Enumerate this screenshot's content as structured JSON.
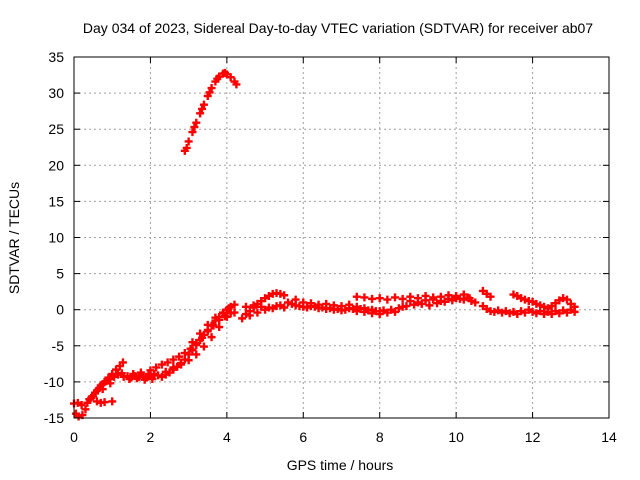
{
  "chart_data": {
    "type": "scatter",
    "title": "Day 034 of 2023, Sidereal Day-to-day VTEC variation (SDTVAR) for receiver ab07",
    "xlabel": "GPS time / hours",
    "ylabel": "SDTVAR / TECUs",
    "xlim": [
      0,
      14
    ],
    "ylim": [
      -15,
      35
    ],
    "xticks": [
      0,
      2,
      4,
      6,
      8,
      10,
      12,
      14
    ],
    "yticks": [
      -15,
      -10,
      -5,
      0,
      5,
      10,
      15,
      20,
      25,
      30,
      35
    ],
    "grid": true,
    "legend": "none",
    "marker": "plus",
    "series": [
      {
        "color": "#ff0000",
        "points": [
          [
            0.0,
            -13.0
          ],
          [
            0.1,
            -12.9
          ],
          [
            0.2,
            -13.2
          ],
          [
            0.05,
            -14.4
          ],
          [
            0.12,
            -14.8
          ],
          [
            0.22,
            -14.6
          ],
          [
            0.3,
            -13.8
          ],
          [
            0.35,
            -12.9
          ],
          [
            0.45,
            -12.2
          ],
          [
            0.55,
            -11.5
          ],
          [
            0.65,
            -10.9
          ],
          [
            0.75,
            -10.3
          ],
          [
            0.85,
            -9.9
          ],
          [
            0.95,
            -9.6
          ],
          [
            1.05,
            -9.3
          ],
          [
            1.15,
            -9.0
          ],
          [
            1.25,
            -8.8
          ],
          [
            0.5,
            -12.0
          ],
          [
            0.6,
            -11.2
          ],
          [
            0.7,
            -10.5
          ],
          [
            0.8,
            -10.0
          ],
          [
            0.9,
            -9.4
          ],
          [
            1.0,
            -8.9
          ],
          [
            1.1,
            -8.3
          ],
          [
            1.2,
            -7.8
          ],
          [
            1.28,
            -7.3
          ],
          [
            0.4,
            -12.4
          ],
          [
            0.55,
            -11.6
          ],
          [
            0.75,
            -11.0
          ],
          [
            0.95,
            -10.2
          ],
          [
            0.6,
            -12.7
          ],
          [
            0.7,
            -12.9
          ],
          [
            0.8,
            -12.8
          ],
          [
            1.0,
            -12.7
          ],
          [
            1.3,
            -9.3
          ],
          [
            1.4,
            -9.2
          ],
          [
            1.5,
            -9.4
          ],
          [
            1.6,
            -9.2
          ],
          [
            1.7,
            -9.3
          ],
          [
            1.8,
            -9.1
          ],
          [
            1.9,
            -9.4
          ],
          [
            2.0,
            -9.2
          ],
          [
            1.45,
            -9.6
          ],
          [
            1.65,
            -9.5
          ],
          [
            1.85,
            -9.7
          ],
          [
            2.05,
            -9.6
          ],
          [
            1.55,
            -8.9
          ],
          [
            1.75,
            -8.7
          ],
          [
            1.95,
            -8.9
          ],
          [
            2.1,
            -8.9
          ],
          [
            2.2,
            -9.1
          ],
          [
            2.3,
            -9.3
          ],
          [
            2.4,
            -9.0
          ],
          [
            2.5,
            -8.7
          ],
          [
            2.6,
            -8.3
          ],
          [
            2.7,
            -7.9
          ],
          [
            2.8,
            -7.4
          ],
          [
            2.9,
            -6.9
          ],
          [
            3.0,
            -6.2
          ],
          [
            3.1,
            -5.6
          ],
          [
            3.2,
            -4.9
          ],
          [
            3.3,
            -4.2
          ],
          [
            3.4,
            -3.5
          ],
          [
            3.5,
            -2.8
          ],
          [
            3.6,
            -2.2
          ],
          [
            3.7,
            -1.5
          ],
          [
            3.8,
            -1.0
          ],
          [
            3.9,
            -0.5
          ],
          [
            4.0,
            0.0
          ],
          [
            4.1,
            0.4
          ],
          [
            4.2,
            0.7
          ],
          [
            2.0,
            -8.4
          ],
          [
            2.15,
            -8.0
          ],
          [
            2.3,
            -7.6
          ],
          [
            2.45,
            -7.3
          ],
          [
            2.6,
            -6.9
          ],
          [
            2.75,
            -6.5
          ],
          [
            2.9,
            -6.0
          ],
          [
            3.05,
            -5.4
          ],
          [
            3.2,
            -4.6
          ],
          [
            3.35,
            -3.9
          ],
          [
            3.5,
            -3.0
          ],
          [
            3.65,
            -2.2
          ],
          [
            3.8,
            -1.4
          ],
          [
            3.95,
            -0.9
          ],
          [
            4.1,
            -0.5
          ],
          [
            4.2,
            -0.4
          ],
          [
            2.4,
            -8.6
          ],
          [
            2.6,
            -8.0
          ],
          [
            2.8,
            -7.6
          ],
          [
            3.0,
            -7.0
          ],
          [
            3.2,
            -6.2
          ],
          [
            3.4,
            -5.1
          ],
          [
            3.6,
            -3.8
          ],
          [
            3.8,
            -2.4
          ],
          [
            4.0,
            -1.0
          ],
          [
            3.1,
            -4.5
          ],
          [
            3.3,
            -3.3
          ],
          [
            3.5,
            -2.1
          ],
          [
            3.7,
            -1.1
          ],
          [
            3.9,
            -0.4
          ],
          [
            4.05,
            0.2
          ],
          [
            2.9,
            22.0
          ],
          [
            3.0,
            23.3
          ],
          [
            3.1,
            24.6
          ],
          [
            3.2,
            25.9
          ],
          [
            3.3,
            27.2
          ],
          [
            3.4,
            28.4
          ],
          [
            3.5,
            29.6
          ],
          [
            3.6,
            30.7
          ],
          [
            3.7,
            31.6
          ],
          [
            3.8,
            32.3
          ],
          [
            3.9,
            32.7
          ],
          [
            4.0,
            32.6
          ],
          [
            4.1,
            32.2
          ],
          [
            4.2,
            31.6
          ],
          [
            4.25,
            31.2
          ],
          [
            2.95,
            22.4
          ],
          [
            3.15,
            25.3
          ],
          [
            3.35,
            27.8
          ],
          [
            3.55,
            30.1
          ],
          [
            3.75,
            32.0
          ],
          [
            3.95,
            32.8
          ],
          [
            4.4,
            -1.2
          ],
          [
            4.5,
            -0.6
          ],
          [
            4.6,
            -0.2
          ],
          [
            4.7,
            0.3
          ],
          [
            4.8,
            0.8
          ],
          [
            4.9,
            1.2
          ],
          [
            5.0,
            1.6
          ],
          [
            5.1,
            1.9
          ],
          [
            5.2,
            2.2
          ],
          [
            5.3,
            2.3
          ],
          [
            5.4,
            2.2
          ],
          [
            5.5,
            2.0
          ],
          [
            4.5,
            0.4
          ],
          [
            4.7,
            0.6
          ],
          [
            4.9,
            0.4
          ],
          [
            5.1,
            0.3
          ],
          [
            5.3,
            0.5
          ],
          [
            5.5,
            0.3
          ],
          [
            4.6,
            -0.8
          ],
          [
            4.8,
            -0.4
          ],
          [
            5.0,
            0.0
          ],
          [
            5.2,
            0.2
          ],
          [
            5.4,
            0.6
          ],
          [
            5.6,
            1.0
          ],
          [
            5.7,
            0.8
          ],
          [
            5.8,
            0.6
          ],
          [
            5.9,
            0.5
          ],
          [
            6.0,
            0.4
          ],
          [
            6.1,
            0.3
          ],
          [
            6.2,
            0.5
          ],
          [
            6.3,
            0.4
          ],
          [
            6.4,
            0.2
          ],
          [
            6.5,
            0.3
          ],
          [
            6.6,
            0.1
          ],
          [
            6.7,
            0.2
          ],
          [
            6.8,
            0.0
          ],
          [
            6.9,
            0.1
          ],
          [
            7.0,
            -0.1
          ],
          [
            7.1,
            0.0
          ],
          [
            7.2,
            0.2
          ],
          [
            7.3,
            0.1
          ],
          [
            7.4,
            -0.2
          ],
          [
            5.8,
            1.4
          ],
          [
            6.0,
            1.0
          ],
          [
            6.2,
            0.9
          ],
          [
            6.4,
            0.7
          ],
          [
            6.6,
            0.8
          ],
          [
            6.8,
            0.6
          ],
          [
            7.0,
            0.5
          ],
          [
            7.2,
            0.7
          ],
          [
            7.4,
            0.4
          ],
          [
            7.6,
            0.2
          ],
          [
            7.8,
            0.0
          ],
          [
            8.0,
            -0.2
          ],
          [
            7.5,
            0.1
          ],
          [
            7.6,
            -0.3
          ],
          [
            7.7,
            -0.1
          ],
          [
            7.8,
            -0.5
          ],
          [
            7.9,
            -0.2
          ],
          [
            8.0,
            -0.6
          ],
          [
            8.1,
            -0.1
          ],
          [
            8.2,
            -0.4
          ],
          [
            8.3,
            0.0
          ],
          [
            8.4,
            -0.3
          ],
          [
            8.5,
            0.2
          ],
          [
            8.6,
            0.4
          ],
          [
            7.4,
            1.8
          ],
          [
            7.6,
            1.7
          ],
          [
            7.8,
            1.5
          ],
          [
            8.0,
            1.6
          ],
          [
            8.2,
            1.4
          ],
          [
            8.4,
            1.7
          ],
          [
            8.6,
            1.5
          ],
          [
            8.8,
            1.8
          ],
          [
            9.0,
            1.6
          ],
          [
            9.2,
            1.9
          ],
          [
            9.4,
            1.7
          ],
          [
            9.6,
            1.8
          ],
          [
            9.8,
            2.0
          ],
          [
            10.0,
            1.9
          ],
          [
            10.2,
            2.1
          ],
          [
            8.7,
            0.5
          ],
          [
            8.9,
            0.7
          ],
          [
            9.1,
            0.8
          ],
          [
            9.3,
            0.6
          ],
          [
            9.5,
            0.9
          ],
          [
            9.7,
            1.1
          ],
          [
            9.9,
            1.3
          ],
          [
            10.1,
            1.5
          ],
          [
            10.3,
            1.7
          ],
          [
            10.4,
            1.2
          ],
          [
            10.5,
            1.0
          ],
          [
            8.8,
            1.2
          ],
          [
            9.0,
            1.0
          ],
          [
            9.2,
            1.3
          ],
          [
            9.4,
            1.4
          ],
          [
            9.6,
            1.2
          ],
          [
            9.8,
            1.5
          ],
          [
            10.0,
            1.6
          ],
          [
            10.2,
            1.4
          ],
          [
            10.35,
            1.6
          ],
          [
            10.7,
            2.6
          ],
          [
            10.8,
            2.2
          ],
          [
            10.9,
            1.8
          ],
          [
            10.7,
            0.5
          ],
          [
            10.8,
            0.1
          ],
          [
            10.9,
            -0.2
          ],
          [
            11.0,
            -0.3
          ],
          [
            11.1,
            -0.1
          ],
          [
            11.2,
            -0.4
          ],
          [
            11.3,
            -0.2
          ],
          [
            11.4,
            -0.5
          ],
          [
            11.5,
            -0.3
          ],
          [
            11.6,
            -0.6
          ],
          [
            11.7,
            -0.2
          ],
          [
            11.8,
            -0.4
          ],
          [
            11.9,
            0.0
          ],
          [
            11.5,
            2.1
          ],
          [
            11.6,
            1.9
          ],
          [
            11.7,
            1.6
          ],
          [
            11.8,
            1.4
          ],
          [
            11.9,
            1.2
          ],
          [
            12.0,
            1.1
          ],
          [
            12.1,
            0.8
          ],
          [
            12.2,
            0.6
          ],
          [
            12.3,
            0.4
          ],
          [
            12.4,
            0.2
          ],
          [
            12.5,
            0.5
          ],
          [
            12.6,
            0.9
          ],
          [
            12.7,
            1.3
          ],
          [
            12.8,
            1.6
          ],
          [
            12.9,
            1.4
          ],
          [
            12.0,
            -0.3
          ],
          [
            12.1,
            -0.5
          ],
          [
            12.2,
            -0.2
          ],
          [
            12.3,
            -0.6
          ],
          [
            12.4,
            -0.3
          ],
          [
            12.5,
            -0.6
          ],
          [
            12.6,
            -0.2
          ],
          [
            12.7,
            -0.5
          ],
          [
            12.8,
            -0.1
          ],
          [
            12.9,
            -0.4
          ],
          [
            13.0,
            0.0
          ],
          [
            13.1,
            -0.3
          ],
          [
            13.1,
            0.4
          ],
          [
            13.0,
            0.8
          ]
        ]
      }
    ]
  }
}
